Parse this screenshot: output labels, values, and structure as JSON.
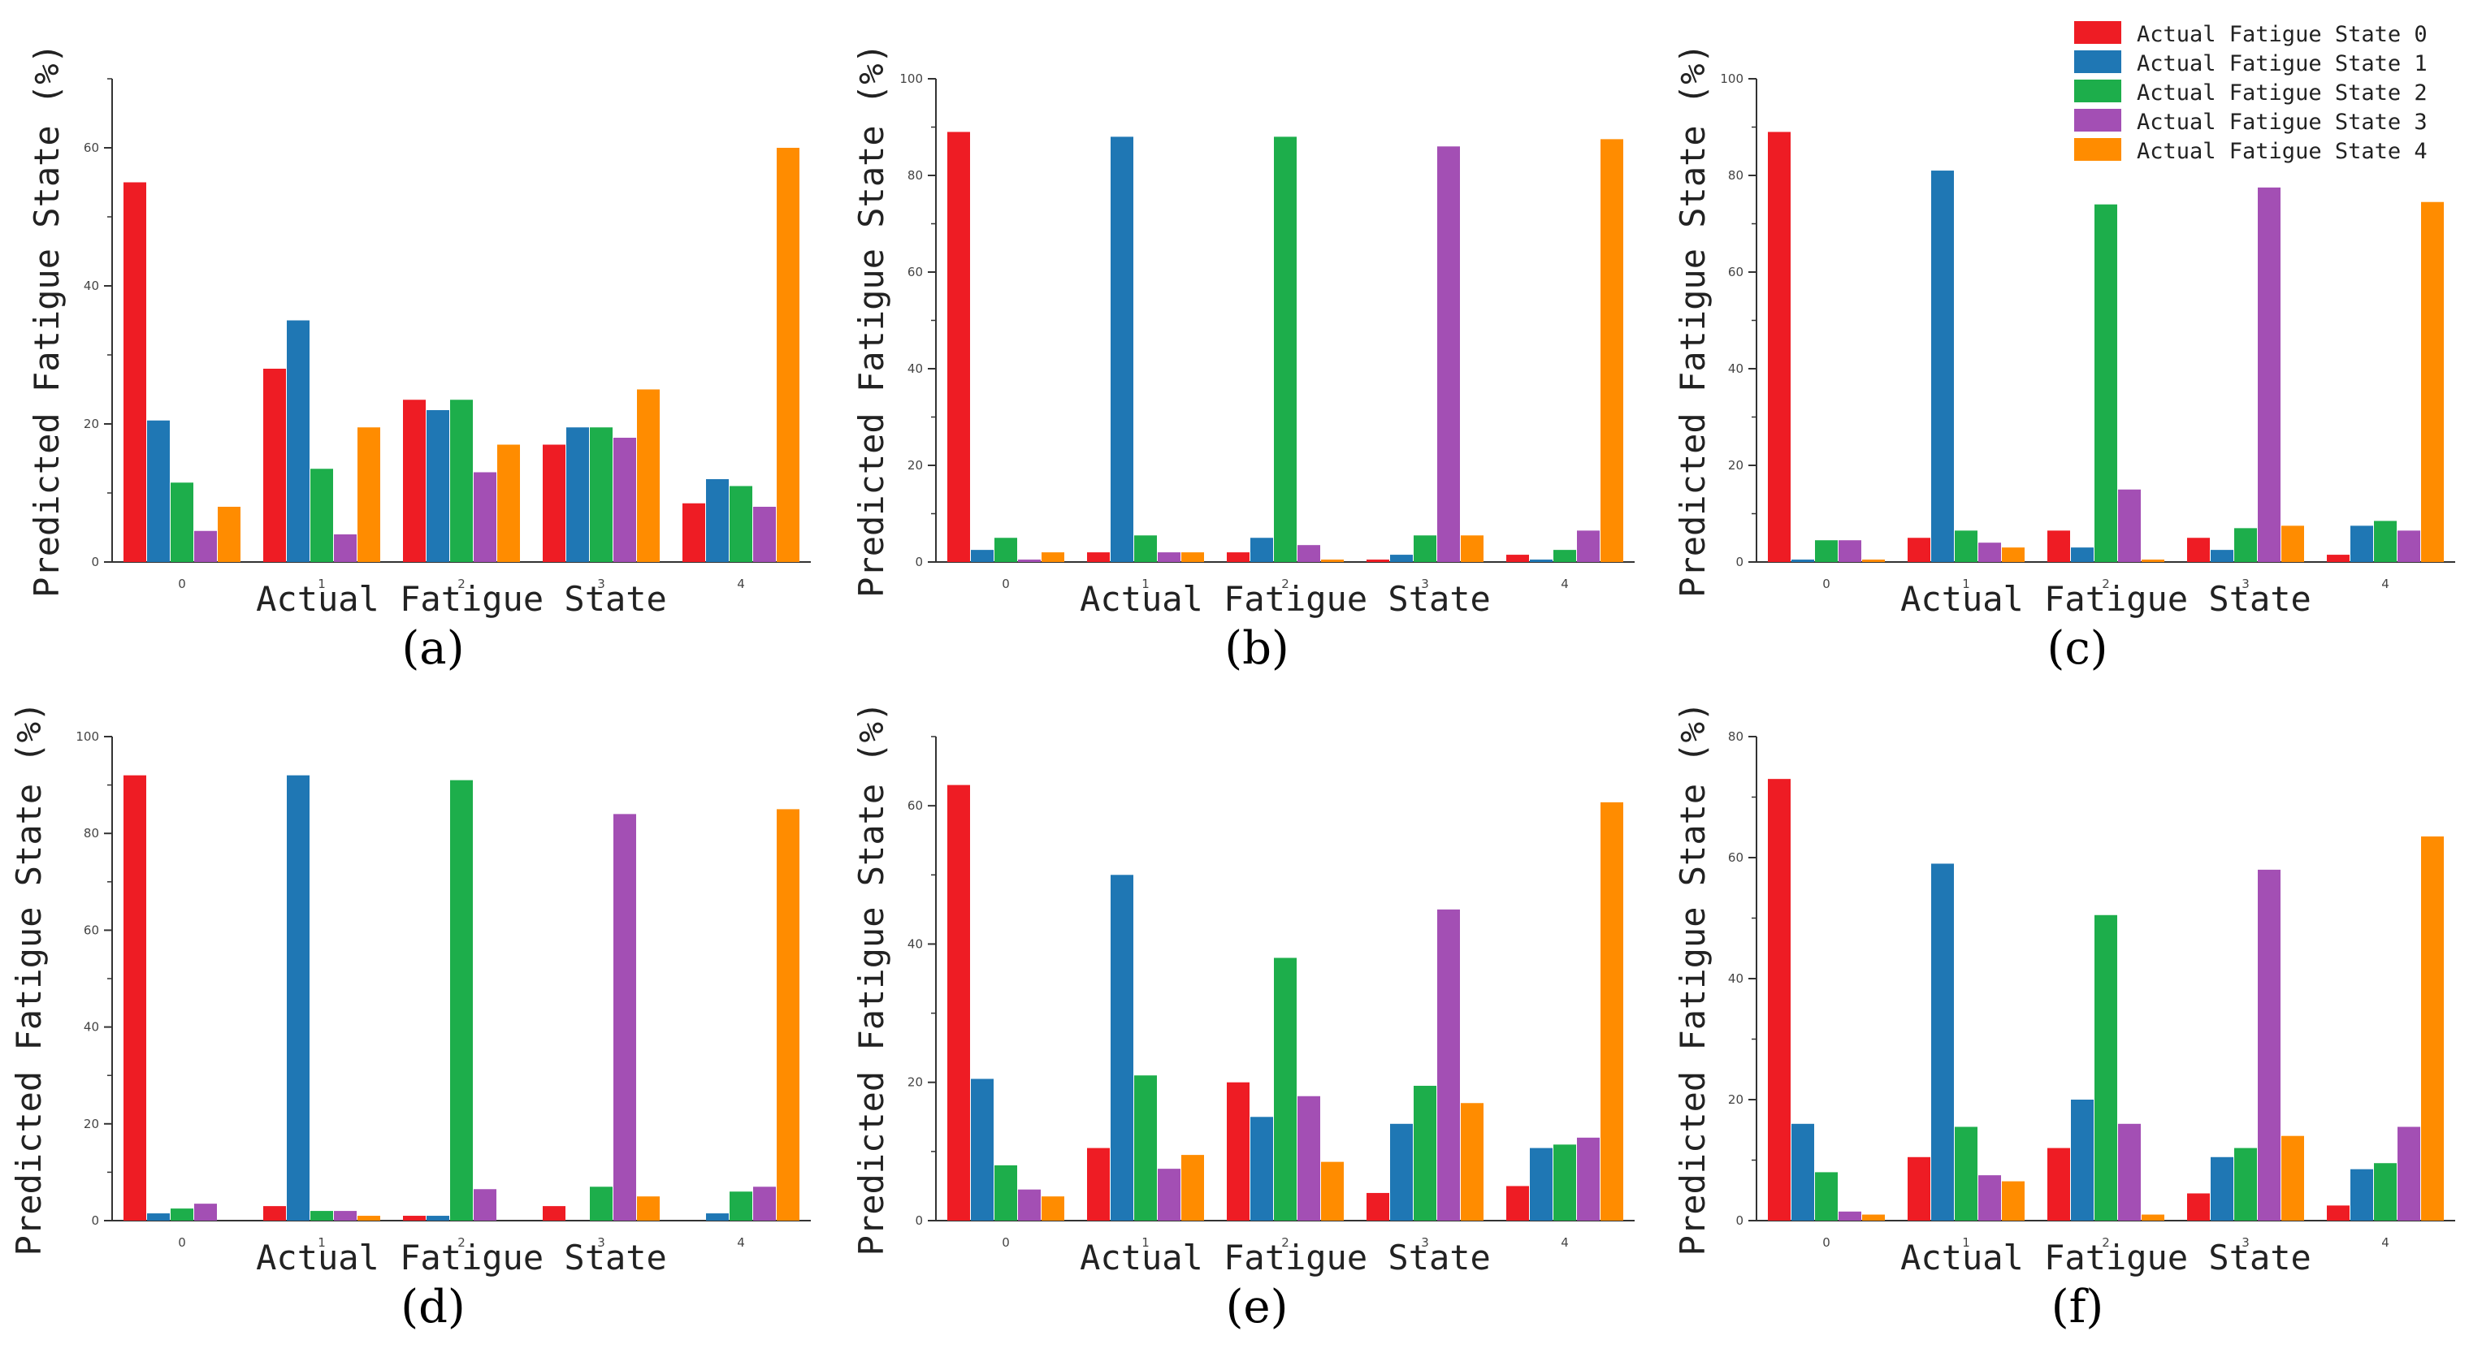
{
  "figure": {
    "colors": [
      "#ee1c24",
      "#1f77b4",
      "#1dae4b",
      "#a34fb4",
      "#ff8c00"
    ],
    "legend": [
      "Actual Fatigue State 0",
      "Actual Fatigue State 1",
      "Actual Fatigue State 2",
      "Actual Fatigue State 3",
      "Actual Fatigue State 4"
    ]
  },
  "chart_data": [
    {
      "type": "bar",
      "panel": "(a)",
      "xlabel": "Actual Fatigue State",
      "ylabel": "Predicted Fatigue State (%)",
      "categories": [
        "0",
        "1",
        "2",
        "3",
        "4"
      ],
      "ylim": [
        0,
        70
      ],
      "yticks": [
        0,
        20,
        40,
        60
      ],
      "series": [
        {
          "name": "Actual Fatigue State 0",
          "values": [
            55,
            28,
            23.5,
            17,
            8.5
          ]
        },
        {
          "name": "Actual Fatigue State 1",
          "values": [
            20.5,
            35,
            22,
            19.5,
            12
          ]
        },
        {
          "name": "Actual Fatigue State 2",
          "values": [
            11.5,
            13.5,
            23.5,
            19.5,
            11
          ]
        },
        {
          "name": "Actual Fatigue State 3",
          "values": [
            4.5,
            4,
            13,
            18,
            8
          ]
        },
        {
          "name": "Actual Fatigue State 4",
          "values": [
            8,
            19.5,
            17,
            25,
            60
          ]
        }
      ]
    },
    {
      "type": "bar",
      "panel": "(b)",
      "xlabel": "Actual Fatigue State",
      "ylabel": "Predicted Fatigue State (%)",
      "categories": [
        "0",
        "1",
        "2",
        "3",
        "4"
      ],
      "ylim": [
        0,
        100
      ],
      "yticks": [
        0,
        20,
        40,
        60,
        80,
        100
      ],
      "series": [
        {
          "name": "Actual Fatigue State 0",
          "values": [
            89,
            2,
            2,
            0.5,
            1.5
          ]
        },
        {
          "name": "Actual Fatigue State 1",
          "values": [
            2.5,
            88,
            5,
            1.5,
            0.5
          ]
        },
        {
          "name": "Actual Fatigue State 2",
          "values": [
            5,
            5.5,
            88,
            5.5,
            2.5
          ]
        },
        {
          "name": "Actual Fatigue State 3",
          "values": [
            0.5,
            2,
            3.5,
            86,
            6.5
          ]
        },
        {
          "name": "Actual Fatigue State 4",
          "values": [
            2,
            2,
            0.5,
            5.5,
            87.5
          ]
        }
      ]
    },
    {
      "type": "bar",
      "panel": "(c)",
      "xlabel": "Actual Fatigue State",
      "ylabel": "Predicted Fatigue State (%)",
      "categories": [
        "0",
        "1",
        "2",
        "3",
        "4"
      ],
      "ylim": [
        0,
        100
      ],
      "yticks": [
        0,
        20,
        40,
        60,
        80,
        100
      ],
      "series": [
        {
          "name": "Actual Fatigue State 0",
          "values": [
            89,
            5,
            6.5,
            5,
            1.5
          ]
        },
        {
          "name": "Actual Fatigue State 1",
          "values": [
            0.5,
            81,
            3,
            2.5,
            7.5
          ]
        },
        {
          "name": "Actual Fatigue State 2",
          "values": [
            4.5,
            6.5,
            74,
            7,
            8.5
          ]
        },
        {
          "name": "Actual Fatigue State 3",
          "values": [
            4.5,
            4,
            15,
            77.5,
            6.5
          ]
        },
        {
          "name": "Actual Fatigue State 4",
          "values": [
            0.5,
            3,
            0.5,
            7.5,
            74.5
          ]
        }
      ]
    },
    {
      "type": "bar",
      "panel": "(d)",
      "xlabel": "Actual Fatigue State",
      "ylabel": "Predicted Fatigue State (%)",
      "categories": [
        "0",
        "1",
        "2",
        "3",
        "4"
      ],
      "ylim": [
        0,
        100
      ],
      "yticks": [
        0,
        20,
        40,
        60,
        80,
        100
      ],
      "series": [
        {
          "name": "Actual Fatigue State 0",
          "values": [
            92,
            3,
            1,
            3,
            0
          ]
        },
        {
          "name": "Actual Fatigue State 1",
          "values": [
            1.5,
            92,
            1,
            0,
            1.5
          ]
        },
        {
          "name": "Actual Fatigue State 2",
          "values": [
            2.5,
            2,
            91,
            7,
            6
          ]
        },
        {
          "name": "Actual Fatigue State 3",
          "values": [
            3.5,
            2,
            6.5,
            84,
            7
          ]
        },
        {
          "name": "Actual Fatigue State 4",
          "values": [
            0,
            1,
            0,
            5,
            85
          ]
        }
      ]
    },
    {
      "type": "bar",
      "panel": "(e)",
      "xlabel": "Actual Fatigue State",
      "ylabel": "Predicted Fatigue State (%)",
      "categories": [
        "0",
        "1",
        "2",
        "3",
        "4"
      ],
      "ylim": [
        0,
        70
      ],
      "yticks": [
        0,
        20,
        40,
        60
      ],
      "series": [
        {
          "name": "Actual Fatigue State 0",
          "values": [
            63,
            10.5,
            20,
            4,
            5
          ]
        },
        {
          "name": "Actual Fatigue State 1",
          "values": [
            20.5,
            50,
            15,
            14,
            10.5
          ]
        },
        {
          "name": "Actual Fatigue State 2",
          "values": [
            8,
            21,
            38,
            19.5,
            11
          ]
        },
        {
          "name": "Actual Fatigue State 3",
          "values": [
            4.5,
            7.5,
            18,
            45,
            12
          ]
        },
        {
          "name": "Actual Fatigue State 4",
          "values": [
            3.5,
            9.5,
            8.5,
            17,
            60.5
          ]
        }
      ]
    },
    {
      "type": "bar",
      "panel": "(f)",
      "xlabel": "Actual Fatigue State",
      "ylabel": "Predicted Fatigue State (%)",
      "categories": [
        "0",
        "1",
        "2",
        "3",
        "4"
      ],
      "ylim": [
        0,
        80
      ],
      "yticks": [
        0,
        20,
        40,
        60,
        80
      ],
      "series": [
        {
          "name": "Actual Fatigue State 0",
          "values": [
            73,
            10.5,
            12,
            4.5,
            2.5
          ]
        },
        {
          "name": "Actual Fatigue State 1",
          "values": [
            16,
            59,
            20,
            10.5,
            8.5
          ]
        },
        {
          "name": "Actual Fatigue State 2",
          "values": [
            8,
            15.5,
            50.5,
            12,
            9.5
          ]
        },
        {
          "name": "Actual Fatigue State 3",
          "values": [
            1.5,
            7.5,
            16,
            58,
            15.5
          ]
        },
        {
          "name": "Actual Fatigue State 4",
          "values": [
            1,
            6.5,
            1,
            14,
            63.5
          ]
        }
      ]
    }
  ]
}
